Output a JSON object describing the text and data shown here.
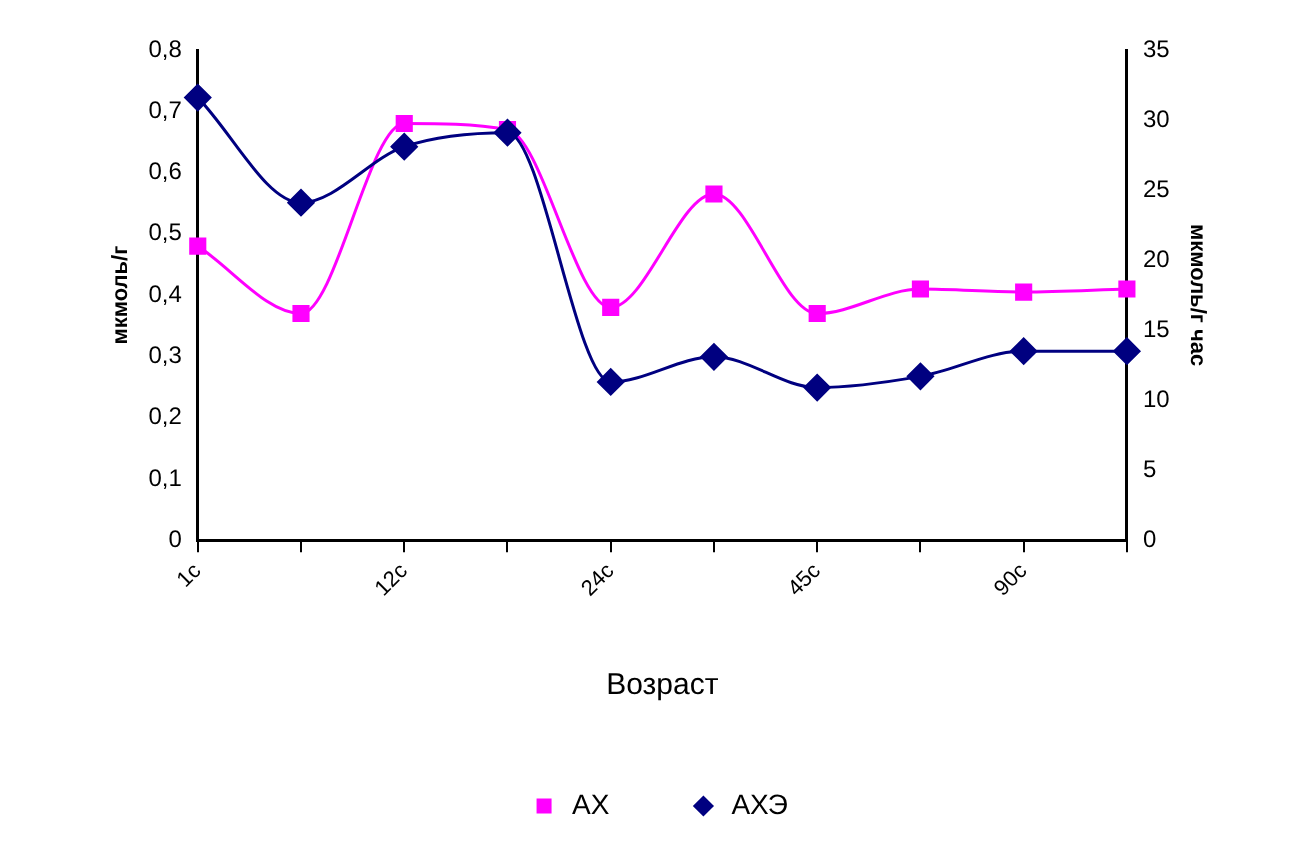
{
  "chart_data": {
    "type": "line",
    "xlabel": "Возраст",
    "ylabel": "мкмоль/г",
    "y2label": "мкмоль/г час",
    "categories": [
      "1c",
      null,
      "12c",
      null,
      "24c",
      null,
      "45c",
      null,
      "90c",
      null
    ],
    "series": [
      {
        "name": "АХ",
        "color": "#ff00ff",
        "marker": "square",
        "values": [
          0.48,
          0.37,
          0.68,
          0.67,
          0.38,
          0.565,
          0.37,
          0.41,
          0.405,
          0.41
        ]
      },
      {
        "name": "АХЭ",
        "color": "#000080",
        "marker": "diamond",
        "axis": "y2",
        "values": [
          31.6,
          24.1,
          28.1,
          29.1,
          11.3,
          13.1,
          10.9,
          11.7,
          13.5,
          13.5
        ]
      }
    ],
    "ylim": [
      0,
      0.8
    ],
    "yticks": [
      0,
      {
        "value": 0.1,
        "label": "0,1"
      },
      {
        "value": 0.2,
        "label": "0,2"
      },
      {
        "value": 0.3,
        "label": "0,3"
      },
      {
        "value": 0.4,
        "label": "0,4"
      },
      {
        "value": 0.5,
        "label": "0,5"
      },
      {
        "value": 0.6,
        "label": "0,6"
      },
      {
        "value": 0.7,
        "label": "0,7"
      },
      {
        "value": 0.8,
        "label": "0,8"
      }
    ],
    "y2lim": [
      0,
      35
    ],
    "y2ticks": [
      0,
      5,
      10,
      15,
      20,
      25,
      30,
      35
    ],
    "grid": false,
    "legend": "bottom",
    "line_style": "solid"
  }
}
